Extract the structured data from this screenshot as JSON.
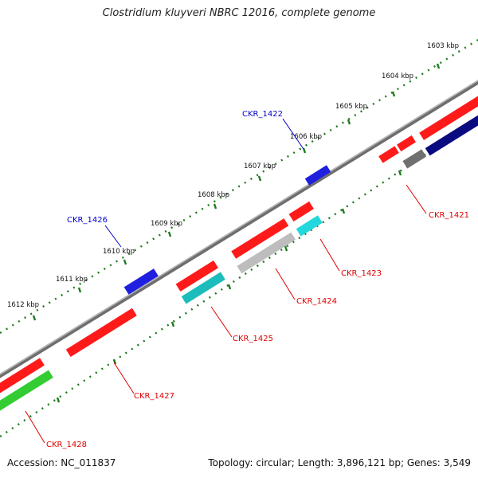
{
  "title": "Clostridium kluyveri NBRC 12016, complete genome",
  "footer": {
    "accession": "Accession: NC_011837",
    "summary": "Topology: circular; Length: 3,896,121 bp; Genes: 3,549"
  },
  "ticks": [
    "1603 kbp",
    "1604 kbp",
    "1605 kbp",
    "1606 kbp",
    "1607 kbp",
    "1608 kbp",
    "1609 kbp",
    "1610 kbp",
    "1611 kbp",
    "1612 kbp"
  ],
  "genes": [
    {
      "label": "CKR_1421",
      "color": "#e00000"
    },
    {
      "label": "CKR_1422",
      "color": "#0000c8"
    },
    {
      "label": "CKR_1423",
      "color": "#e00000"
    },
    {
      "label": "CKR_1424",
      "color": "#e00000"
    },
    {
      "label": "CKR_1425",
      "color": "#e00000"
    },
    {
      "label": "CKR_1426",
      "color": "#0000c8"
    },
    {
      "label": "CKR_1427",
      "color": "#e00000"
    },
    {
      "label": "CKR_1428",
      "color": "#e00000"
    }
  ],
  "colors": {
    "forward_cds": "#ff1a1a",
    "reverse_cds": "#1f1fe0",
    "trna": "#22d8dc",
    "misc": "#bdbdbd",
    "rrna": "#33cc33",
    "navy": "#0a0a80",
    "pseudo": "#707070",
    "backbone": "#808080",
    "tick": "#1f7a1f"
  }
}
